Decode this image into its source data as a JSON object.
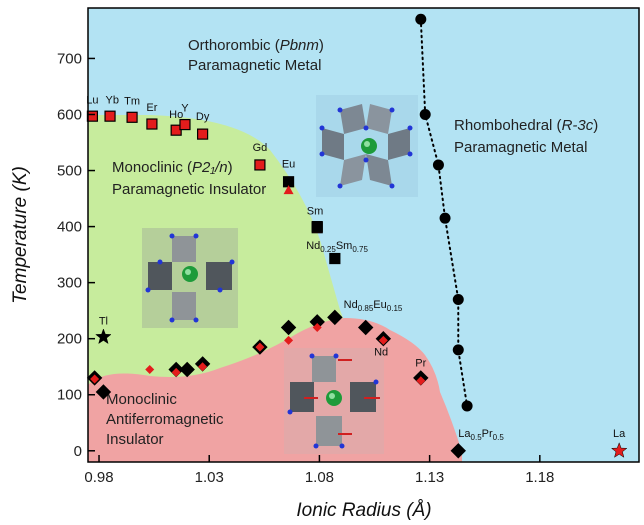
{
  "chart_data": {
    "type": "scatter",
    "xlabel": "Ionic Radius (Å)",
    "ylabel": "Temperature (K)",
    "xlim": [
      0.975,
      1.225
    ],
    "ylim": [
      -20,
      790
    ],
    "x_ticks": [
      "0.98",
      "1.03",
      "1.08",
      "1.13",
      "1.18"
    ],
    "y_ticks": [
      "0",
      "100",
      "200",
      "300",
      "400",
      "500",
      "600",
      "700"
    ],
    "regions": [
      {
        "line1_pre": "Orthorombic (",
        "line1_italic": "Pbnm",
        "line1_post": ")",
        "line2": "Paramagnetic Metal",
        "color": "#b3e3f3"
      },
      {
        "line1_pre": "Rhombohedral (",
        "line1_italic": "R-3c",
        "line1_post": ")",
        "line2": "Paramagnetic Metal",
        "color": "#b3e3f3"
      },
      {
        "line1_pre": "Monoclinic (",
        "line1_italic": "P2₁/n",
        "line1_post": ")",
        "line2": "Paramagnetic Insulator",
        "color": "#c7ec9d"
      },
      {
        "line1": "Monoclinic",
        "line2": "Antiferromagnetic",
        "line3": "Insulator",
        "color": "#f0a3a3"
      }
    ],
    "series": [
      {
        "marker": "square",
        "color": "#e31c1c",
        "points": [
          {
            "x": 0.977,
            "y": 597
          },
          {
            "x": 0.985,
            "y": 597
          },
          {
            "x": 0.995,
            "y": 595
          },
          {
            "x": 1.004,
            "y": 583
          },
          {
            "x": 1.015,
            "y": 572
          },
          {
            "x": 1.019,
            "y": 582
          },
          {
            "x": 1.027,
            "y": 565
          },
          {
            "x": 1.053,
            "y": 510
          },
          {
            "x": 1.079,
            "y": 398
          }
        ]
      },
      {
        "marker": "square",
        "color": "#000000",
        "points": [
          {
            "x": 1.066,
            "y": 480
          },
          {
            "x": 1.079,
            "y": 400
          },
          {
            "x": 1.087,
            "y": 343
          }
        ]
      },
      {
        "marker": "diamond",
        "color": "#000000",
        "points": [
          {
            "x": 0.978,
            "y": 130
          },
          {
            "x": 0.982,
            "y": 105
          },
          {
            "x": 1.015,
            "y": 145
          },
          {
            "x": 1.02,
            "y": 145
          },
          {
            "x": 1.027,
            "y": 155
          },
          {
            "x": 1.053,
            "y": 185
          },
          {
            "x": 1.066,
            "y": 220
          },
          {
            "x": 1.079,
            "y": 230
          },
          {
            "x": 1.087,
            "y": 238
          },
          {
            "x": 1.101,
            "y": 220
          },
          {
            "x": 1.109,
            "y": 200
          },
          {
            "x": 1.126,
            "y": 130
          },
          {
            "x": 1.143,
            "y": 0
          }
        ]
      },
      {
        "marker": "diamond",
        "color": "#e31c1c",
        "points": [
          {
            "x": 0.978,
            "y": 128
          },
          {
            "x": 1.003,
            "y": 145
          },
          {
            "x": 1.015,
            "y": 140
          },
          {
            "x": 1.027,
            "y": 150
          },
          {
            "x": 1.053,
            "y": 185
          },
          {
            "x": 1.066,
            "y": 197
          },
          {
            "x": 1.079,
            "y": 220
          },
          {
            "x": 1.109,
            "y": 197
          },
          {
            "x": 1.126,
            "y": 125
          }
        ]
      },
      {
        "marker": "triangle",
        "color": "#e31c1c",
        "points": [
          {
            "x": 1.066,
            "y": 465
          }
        ]
      },
      {
        "marker": "circle",
        "color": "#000000",
        "points": [
          {
            "x": 1.126,
            "y": 770
          },
          {
            "x": 1.128,
            "y": 600
          },
          {
            "x": 1.134,
            "y": 510
          },
          {
            "x": 1.137,
            "y": 415
          },
          {
            "x": 1.143,
            "y": 270
          },
          {
            "x": 1.143,
            "y": 180
          },
          {
            "x": 1.147,
            "y": 80
          }
        ]
      },
      {
        "marker": "star",
        "color": "#000000",
        "points": [
          {
            "x": 0.982,
            "y": 203
          }
        ]
      },
      {
        "marker": "star",
        "color": "#e31c1c",
        "points": [
          {
            "x": 1.216,
            "y": 0
          }
        ]
      }
    ],
    "labels": [
      {
        "text": "Lu",
        "x": 0.977,
        "y": 620
      },
      {
        "text": "Yb",
        "x": 0.986,
        "y": 620
      },
      {
        "text": "Tm",
        "x": 0.995,
        "y": 618
      },
      {
        "text": "Er",
        "x": 1.004,
        "y": 606
      },
      {
        "text": "Ho",
        "x": 1.015,
        "y": 594
      },
      {
        "text": "Y",
        "x": 1.019,
        "y": 605
      },
      {
        "text": "Dy",
        "x": 1.027,
        "y": 590
      },
      {
        "text": "Gd",
        "x": 1.053,
        "y": 535
      },
      {
        "text": "Eu",
        "x": 1.066,
        "y": 505
      },
      {
        "text": "Sm",
        "x": 1.078,
        "y": 422
      },
      {
        "text": "Tl",
        "x": 0.982,
        "y": 225
      },
      {
        "text": "Nd",
        "x": 1.108,
        "y": 170
      },
      {
        "text": "Pr",
        "x": 1.126,
        "y": 150
      },
      {
        "text": "La",
        "x": 1.216,
        "y": 25
      }
    ],
    "formula_labels": [
      {
        "p1": "Nd",
        "s1": "0.25",
        "p2": "Sm",
        "s2": "0.75",
        "x": 1.074,
        "y": 360
      },
      {
        "p1": "Nd",
        "s1": "0.85",
        "p2": "Eu",
        "s2": "0.15",
        "x": 1.091,
        "y": 255
      },
      {
        "p1": "La",
        "s1": "0.5",
        "p2": "Pr",
        "s2": "0.5",
        "x": 1.143,
        "y": 25
      }
    ]
  }
}
